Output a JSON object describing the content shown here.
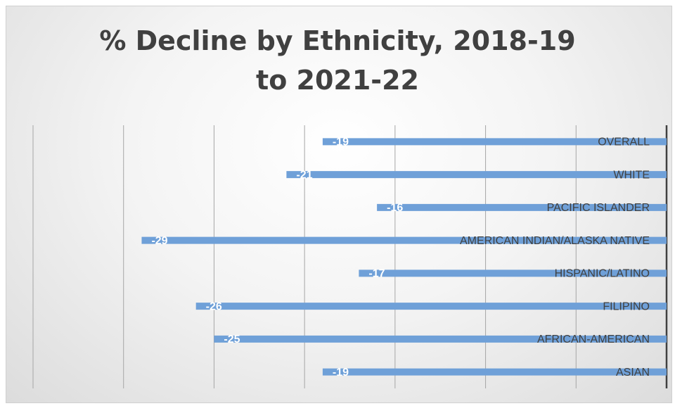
{
  "chart_data": {
    "type": "bar",
    "orientation": "horizontal",
    "title": "% Decline by Ethnicity, 2018-19 to 2021-22",
    "categories": [
      "OVERALL",
      "WHITE",
      "PACIFIC ISLANDER",
      "AMERICAN INDIAN/ALASKA NATIVE",
      "HISPANIC/LATINO",
      "FILIPINO",
      "AFRICAN-AMERICAN",
      "ASIAN"
    ],
    "values": [
      -19,
      -21,
      -16,
      -29,
      -17,
      -26,
      -25,
      -19
    ],
    "color": "#6fa0d8",
    "xlim": [
      -35,
      0
    ],
    "xticks": [
      -35,
      -30,
      -25,
      -20,
      -15,
      -10,
      -5,
      0
    ],
    "grid": true
  }
}
